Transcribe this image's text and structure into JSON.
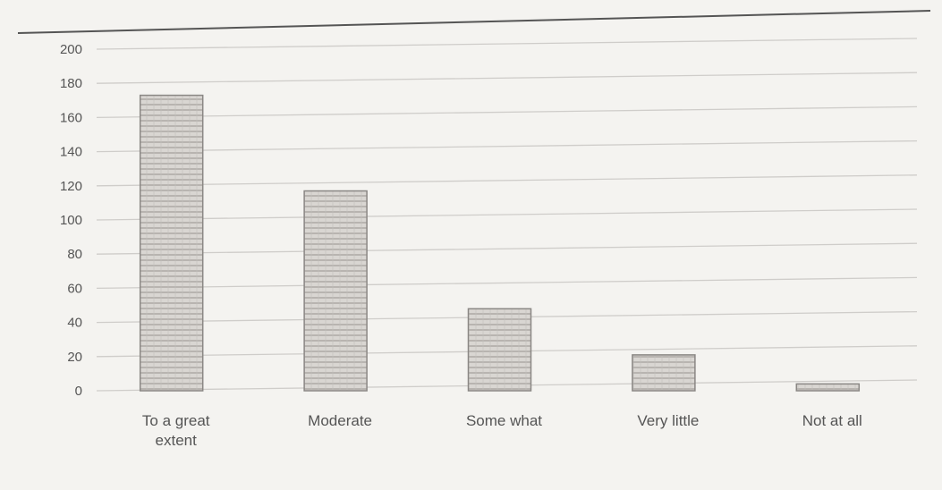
{
  "chart_data": {
    "type": "bar",
    "categories": [
      "To a great extent",
      "Moderate",
      "Some what",
      "Very little",
      "Not at all"
    ],
    "category_lines": [
      [
        "To a great",
        "extent"
      ],
      [
        "Moderate"
      ],
      [
        "Some what"
      ],
      [
        "Very little"
      ],
      [
        "Not at all"
      ]
    ],
    "values": [
      173,
      117,
      48,
      21,
      4
    ],
    "yticks": [
      "0",
      "20",
      "40",
      "60",
      "80",
      "100",
      "120",
      "140",
      "160",
      "180",
      "200"
    ],
    "ylim": [
      0,
      200
    ],
    "title": "",
    "xlabel": "",
    "ylabel": "",
    "grid": true,
    "legend": "none",
    "colors": {
      "bar_fill": "#d9d6d2",
      "bar_stroke": "#8a8784",
      "bar_hatch": "#aaa6a2",
      "grid": "#cfcdca",
      "tick_text": "#555555",
      "background": "#f4f3f0"
    }
  }
}
